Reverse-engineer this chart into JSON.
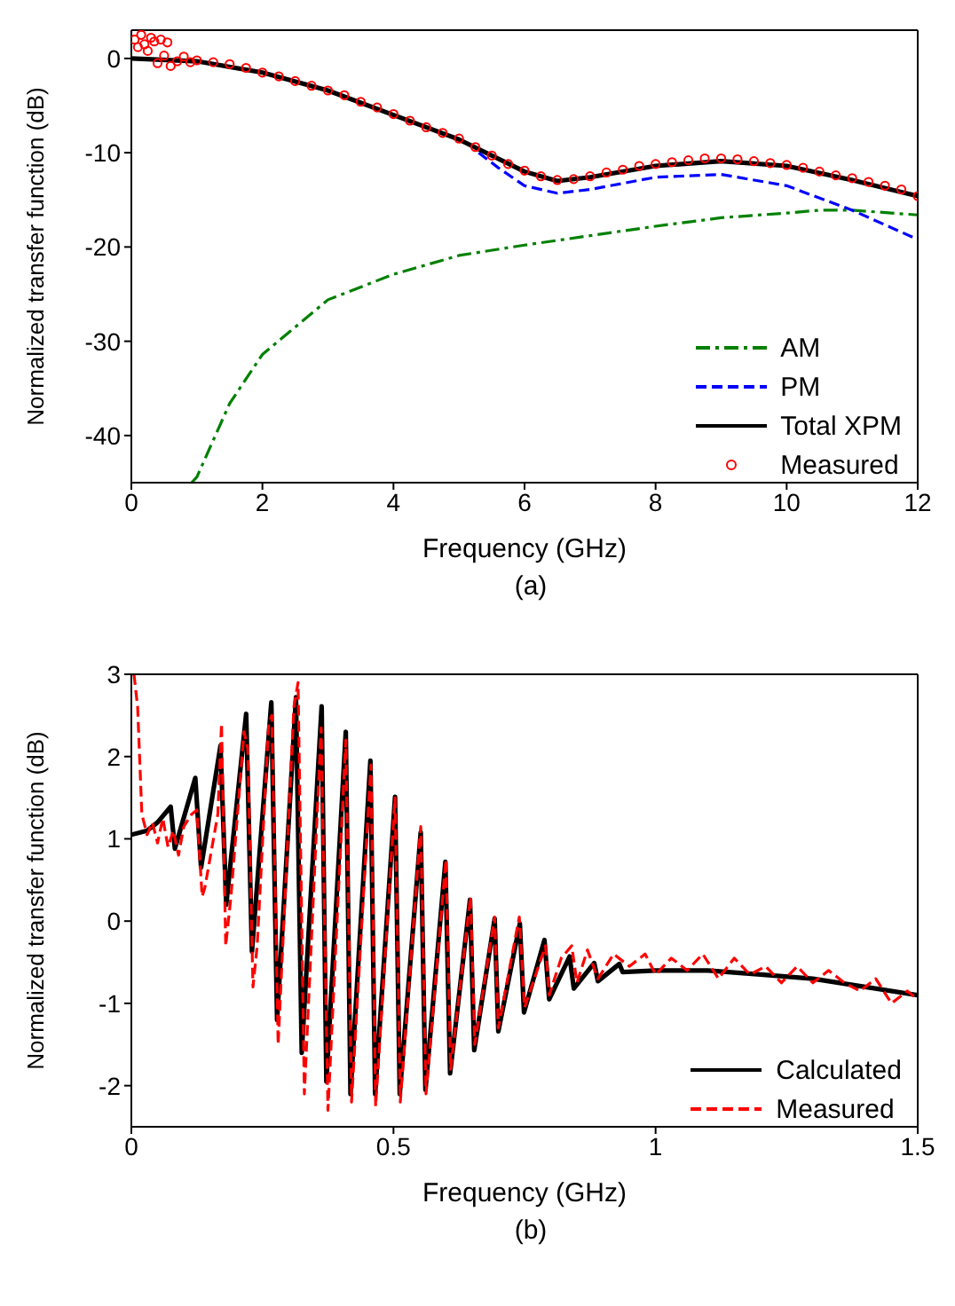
{
  "chart_data": [
    {
      "type": "line",
      "xlabel": "Frequency (GHz)",
      "ylabel": "Normalized transfer function  (dB)",
      "annotations": [
        "(a)"
      ],
      "xlim": [
        0,
        12
      ],
      "xticks": [
        0,
        2,
        4,
        6,
        8,
        10,
        12
      ],
      "ylim": [
        -45,
        3
      ],
      "yticks": [
        -40,
        -30,
        -20,
        -10,
        0
      ],
      "grid": false,
      "legend": "bottom right",
      "series": [
        {
          "name": "AM",
          "color": "#008000",
          "line_style": "dashdot",
          "marker": "none",
          "x": [
            0.92,
            1,
            1.5,
            2,
            3,
            4,
            5,
            6,
            7,
            8,
            9,
            10,
            10.5,
            11,
            12
          ],
          "values": [
            -45,
            -44.4,
            -36.6,
            -31.4,
            -25.6,
            -22.9,
            -20.9,
            -19.8,
            -18.8,
            -17.8,
            -16.9,
            -16.4,
            -16.1,
            -16.1,
            -16.6
          ]
        },
        {
          "name": "PM",
          "color": "#0000ff",
          "line_style": "dashed",
          "marker": "none",
          "x": [
            5.3,
            5.6,
            6,
            6.5,
            7,
            8,
            9,
            10,
            11,
            12
          ],
          "values": [
            -10,
            -11.6,
            -13.5,
            -14.3,
            -13.9,
            -12.6,
            -12.3,
            -13.5,
            -16.1,
            -19.2
          ]
        },
        {
          "name": "Total XPM",
          "color": "#000000",
          "line_style": "solid",
          "marker": "none",
          "x": [
            0,
            1,
            2,
            3,
            4,
            5,
            6,
            6.5,
            7,
            8,
            9,
            10,
            11,
            12
          ],
          "values": [
            0,
            -0.3,
            -1.5,
            -3.4,
            -6,
            -8.6,
            -12.0,
            -13.0,
            -12.6,
            -11.4,
            -10.9,
            -11.4,
            -12.9,
            -14.6
          ]
        },
        {
          "name": "Measured",
          "type": "scatter",
          "color": "#ff0000",
          "marker": "circle",
          "x": [
            0.05,
            0.1,
            0.15,
            0.2,
            0.25,
            0.3,
            0.35,
            0.4,
            0.45,
            0.5,
            0.55,
            0.6,
            0.7,
            0.8,
            0.9,
            1.0,
            1.25,
            1.5,
            1.75,
            2.0,
            2.25,
            2.5,
            2.75,
            3.0,
            3.25,
            3.5,
            3.75,
            4.0,
            4.25,
            4.5,
            4.75,
            5.0,
            5.25,
            5.5,
            5.75,
            6.0,
            6.25,
            6.5,
            6.75,
            7.0,
            7.25,
            7.5,
            7.75,
            8.0,
            8.25,
            8.5,
            8.75,
            9.0,
            9.25,
            9.5,
            9.75,
            10.0,
            10.25,
            10.5,
            10.75,
            11.0,
            11.25,
            11.5,
            11.75,
            12.0
          ],
          "values": [
            2,
            1.2,
            2.5,
            1.5,
            0.8,
            2.2,
            1.8,
            -0.5,
            2,
            0.3,
            1.7,
            -0.8,
            -0.3,
            0.2,
            -0.4,
            -0.2,
            -0.4,
            -0.6,
            -1.0,
            -1.5,
            -1.9,
            -2.4,
            -2.9,
            -3.4,
            -3.9,
            -4.6,
            -5.2,
            -5.9,
            -6.6,
            -7.3,
            -7.9,
            -8.5,
            -9.4,
            -10.3,
            -11.2,
            -11.9,
            -12.5,
            -12.9,
            -12.8,
            -12.5,
            -12.1,
            -11.8,
            -11.4,
            -11.2,
            -11.0,
            -10.8,
            -10.6,
            -10.6,
            -10.7,
            -10.9,
            -11.1,
            -11.3,
            -11.6,
            -12.0,
            -12.4,
            -12.7,
            -13.1,
            -13.5,
            -13.9,
            -14.6
          ]
        }
      ]
    },
    {
      "type": "line",
      "xlabel": "Frequency (GHz)",
      "ylabel": "Normalized transfer function  (dB)",
      "annotations": [
        "(b)"
      ],
      "xlim": [
        0,
        1.5
      ],
      "xticks": [
        0,
        0.5,
        1,
        1.5
      ],
      "ylim": [
        -2.5,
        3
      ],
      "yticks": [
        -2,
        -1,
        0,
        1,
        2,
        3
      ],
      "grid": false,
      "legend": "bottom right",
      "series": [
        {
          "name": "Calculated",
          "color": "#000000",
          "line_style": "solid",
          "marker": "none",
          "x": [
            0,
            0.03,
            0.05,
            0.075,
            0.083,
            0.122,
            0.133,
            0.17,
            0.181,
            0.219,
            0.23,
            0.267,
            0.278,
            0.314,
            0.325,
            0.363,
            0.372,
            0.409,
            0.418,
            0.456,
            0.465,
            0.503,
            0.512,
            0.552,
            0.561,
            0.599,
            0.608,
            0.646,
            0.654,
            0.693,
            0.7,
            0.741,
            0.749,
            0.788,
            0.797,
            0.836,
            0.844,
            0.883,
            0.89,
            0.931,
            0.937,
            1.0,
            1.1,
            1.2,
            1.3,
            1.4,
            1.5
          ],
          "values": [
            1.05,
            1.1,
            1.2,
            1.39,
            0.88,
            1.74,
            0.65,
            2.13,
            0.2,
            2.52,
            -0.37,
            2.66,
            -1.2,
            2.72,
            -1.6,
            2.61,
            -1.95,
            2.3,
            -2.1,
            1.95,
            -2.1,
            1.51,
            -2.1,
            1.08,
            -2.05,
            0.72,
            -1.85,
            0.26,
            -1.57,
            0.03,
            -1.34,
            -0.03,
            -1.11,
            -0.23,
            -0.95,
            -0.43,
            -0.82,
            -0.51,
            -0.73,
            -0.52,
            -0.62,
            -0.6,
            -0.6,
            -0.65,
            -0.7,
            -0.8,
            -0.9
          ]
        },
        {
          "name": "Measured",
          "color": "#ff0000",
          "line_style": "dashed",
          "marker": "none",
          "x": [
            0.005,
            0.012,
            0.02,
            0.03,
            0.04,
            0.05,
            0.06,
            0.07,
            0.08,
            0.09,
            0.1,
            0.115,
            0.125,
            0.135,
            0.14,
            0.165,
            0.172,
            0.18,
            0.19,
            0.215,
            0.222,
            0.232,
            0.24,
            0.262,
            0.268,
            0.28,
            0.31,
            0.318,
            0.33,
            0.362,
            0.375,
            0.409,
            0.42,
            0.457,
            0.466,
            0.503,
            0.513,
            0.552,
            0.562,
            0.6,
            0.609,
            0.647,
            0.655,
            0.693,
            0.7,
            0.74,
            0.75,
            0.79,
            0.797,
            0.82,
            0.84,
            0.85,
            0.87,
            0.89,
            0.92,
            0.95,
            0.98,
            1.0,
            1.03,
            1.06,
            1.09,
            1.12,
            1.15,
            1.18,
            1.21,
            1.24,
            1.27,
            1.3,
            1.33,
            1.36,
            1.39,
            1.42,
            1.45,
            1.48,
            1.5
          ],
          "values": [
            3,
            2.6,
            1.3,
            1.05,
            1.2,
            0.95,
            1.25,
            0.9,
            1.1,
            0.8,
            1.15,
            1.3,
            1.35,
            0.3,
            0.4,
            1.3,
            2.4,
            -0.3,
            0.3,
            2.3,
            2.1,
            -0.8,
            -0.3,
            2.4,
            2.5,
            -1.5,
            2.6,
            2.9,
            -2.1,
            2.35,
            -2.3,
            2.2,
            -2.2,
            1.9,
            -2.25,
            1.5,
            -2.2,
            1.15,
            -2.1,
            0.75,
            -1.8,
            0.3,
            -1.5,
            0.05,
            -1.3,
            0.05,
            -1.05,
            -0.3,
            -0.9,
            -0.45,
            -0.3,
            -0.75,
            -0.35,
            -0.7,
            -0.4,
            -0.55,
            -0.4,
            -0.65,
            -0.45,
            -0.6,
            -0.4,
            -0.7,
            -0.45,
            -0.65,
            -0.55,
            -0.75,
            -0.55,
            -0.75,
            -0.6,
            -0.75,
            -0.85,
            -0.7,
            -1.0,
            -0.85,
            -0.95
          ]
        }
      ]
    }
  ]
}
